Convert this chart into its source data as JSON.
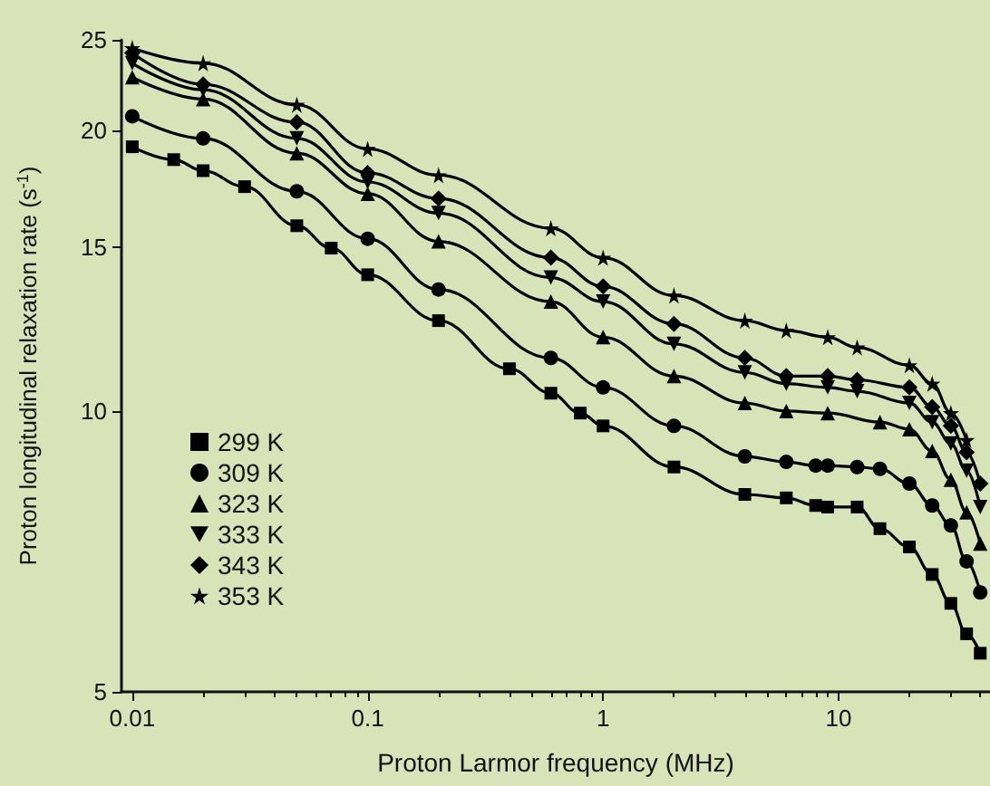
{
  "chart_data": {
    "type": "line",
    "xlabel": "Proton Larmor frequency (MHz)",
    "ylabel": "Proton longitudinal relaxation rate (s$^{-1}$)",
    "log": "xy",
    "xlim": [
      0.009,
      44
    ],
    "ylim": [
      5,
      25
    ],
    "xticks": [
      0.01,
      0.1,
      1,
      10
    ],
    "yticks": [
      5,
      10,
      15,
      20,
      25
    ],
    "grid": false,
    "legend": "bottom left",
    "series": [
      {
        "name": "299 K",
        "color": "#000000",
        "marker": "square",
        "x": [
          0.01,
          0.015,
          0.02,
          0.03,
          0.05,
          0.07,
          0.1,
          0.2,
          0.4,
          0.6,
          0.8,
          1,
          2,
          4,
          6,
          8,
          9,
          12,
          15,
          20,
          25,
          30,
          35,
          40
        ],
        "values": [
          19.2,
          18.6,
          18.1,
          17.4,
          15.8,
          14.95,
          14.0,
          12.5,
          11.1,
          10.45,
          9.95,
          9.64,
          8.71,
          8.14,
          8.07,
          7.92,
          7.89,
          7.89,
          7.48,
          7.15,
          6.68,
          6.22,
          5.77,
          5.5
        ]
      },
      {
        "name": "309 K",
        "color": "#000000",
        "marker": "circle",
        "x": [
          0.01,
          0.02,
          0.05,
          0.1,
          0.2,
          0.6,
          1,
          2,
          4,
          6,
          8,
          9,
          12,
          15,
          20,
          25,
          30,
          35,
          40
        ],
        "values": [
          20.7,
          19.6,
          17.2,
          15.3,
          13.5,
          11.4,
          10.6,
          9.64,
          8.94,
          8.82,
          8.74,
          8.74,
          8.71,
          8.67,
          8.36,
          7.92,
          7.54,
          6.9,
          6.39
        ]
      },
      {
        "name": "323 K",
        "color": "#000000",
        "marker": "triangle",
        "x": [
          0.01,
          0.02,
          0.05,
          0.1,
          0.2,
          0.6,
          1,
          2,
          4,
          6,
          9,
          15,
          20,
          25,
          30,
          35,
          40
        ],
        "values": [
          22.8,
          21.6,
          18.9,
          17.1,
          15.2,
          13.1,
          12.0,
          10.9,
          10.2,
          10.0,
          9.95,
          9.73,
          9.56,
          9.06,
          8.44,
          7.79,
          7.21
        ]
      },
      {
        "name": "333 K",
        "color": "#000000",
        "marker": "triangle-down",
        "x": [
          0.01,
          0.02,
          0.05,
          0.1,
          0.2,
          0.6,
          1,
          2,
          4,
          6,
          9,
          12,
          20,
          25,
          30,
          35,
          40
        ],
        "values": [
          23.6,
          22.1,
          19.6,
          17.6,
          16.3,
          13.9,
          13.1,
          11.8,
          11.0,
          10.7,
          10.6,
          10.5,
          10.2,
          9.73,
          9.23,
          8.63,
          7.89
        ]
      },
      {
        "name": "343 K",
        "color": "#000000",
        "marker": "diamond",
        "x": [
          0.01,
          0.02,
          0.05,
          0.1,
          0.2,
          0.6,
          1,
          2,
          4,
          6,
          9,
          12,
          20,
          25,
          30,
          35,
          40
        ],
        "values": [
          24.2,
          22.4,
          20.4,
          18.0,
          16.9,
          14.6,
          13.6,
          12.4,
          11.4,
          10.9,
          10.9,
          10.8,
          10.6,
          10.1,
          9.64,
          9.03,
          8.36
        ]
      },
      {
        "name": "353 K",
        "color": "#000000",
        "marker": "star",
        "x": [
          0.01,
          0.02,
          0.05,
          0.1,
          0.2,
          0.6,
          1,
          2,
          4,
          6,
          9,
          12,
          20,
          25,
          30,
          35
        ],
        "values": [
          24.5,
          23.6,
          21.3,
          19.1,
          17.9,
          15.7,
          14.6,
          13.3,
          12.5,
          12.2,
          12.0,
          11.7,
          11.2,
          10.7,
          9.95,
          9.31
        ]
      }
    ]
  }
}
